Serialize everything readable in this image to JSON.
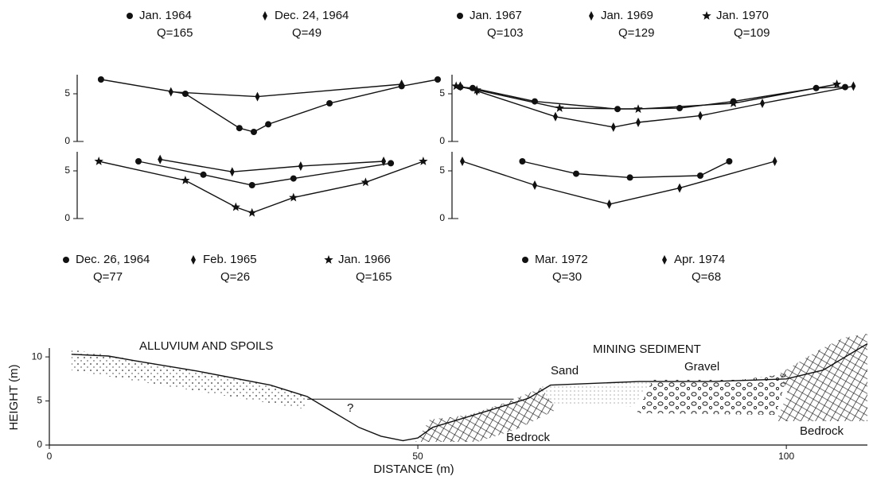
{
  "chart_data": [
    {
      "type": "profile",
      "legend": "top",
      "xlim": [
        0,
        100
      ],
      "ylim": [
        0,
        7
      ],
      "yticks": [
        0,
        5
      ],
      "series": [
        {
          "name": "Jan. 1964",
          "q": "Q=165",
          "marker": "circle",
          "x": [
            6.6,
            30,
            45,
            49,
            53,
            70,
            90,
            100
          ],
          "values": [
            6.5,
            5,
            1.4,
            1.0,
            1.8,
            4,
            5.8,
            6.5
          ]
        },
        {
          "name": "Dec. 24, 1964",
          "q": "Q=49",
          "marker": "diamond",
          "x": [
            26,
            50,
            90
          ],
          "values": [
            5.2,
            4.7,
            6.0
          ]
        }
      ]
    },
    {
      "type": "profile",
      "legend": "top",
      "xlim": [
        0,
        100
      ],
      "ylim": [
        0,
        7
      ],
      "yticks": [
        0,
        5
      ],
      "series": [
        {
          "name": "Jan. 1967",
          "q": "Q=103",
          "marker": "circle",
          "x": [
            2,
            5,
            20,
            40,
            55,
            68,
            88,
            95
          ],
          "values": [
            5.7,
            5.6,
            4.2,
            3.4,
            3.5,
            4.2,
            5.6,
            5.7
          ]
        },
        {
          "name": "Jan. 1969",
          "q": "Q=129",
          "marker": "diamond",
          "x": [
            2,
            6,
            25,
            39,
            45,
            60,
            75,
            97
          ],
          "values": [
            5.8,
            5.3,
            2.6,
            1.5,
            2.0,
            2.7,
            4,
            5.8
          ]
        },
        {
          "name": "Jan. 1970",
          "q": "Q=109",
          "marker": "star",
          "x": [
            1,
            6,
            26,
            45,
            68,
            93
          ],
          "values": [
            5.8,
            5.4,
            3.5,
            3.4,
            4.0,
            6.0
          ]
        }
      ]
    },
    {
      "type": "profile",
      "legend": "bottom",
      "xlim": [
        0,
        100
      ],
      "ylim": [
        0,
        7
      ],
      "yticks": [
        0,
        5
      ],
      "series": [
        {
          "name": "Dec. 26, 1964",
          "q": "Q=77",
          "marker": "circle",
          "x": [
            17,
            35,
            48.5,
            60,
            87
          ],
          "values": [
            6.0,
            4.6,
            3.5,
            4.2,
            5.8
          ]
        },
        {
          "name": "Feb. 1965",
          "q": "Q=26",
          "marker": "diamond",
          "x": [
            23,
            43,
            62,
            85
          ],
          "values": [
            6.2,
            4.9,
            5.5,
            6.0
          ]
        },
        {
          "name": "Jan. 1966",
          "q": "Q=165",
          "marker": "star",
          "x": [
            6,
            30,
            44,
            48.5,
            60,
            80,
            96
          ],
          "values": [
            6.0,
            4.0,
            1.2,
            0.6,
            2.2,
            3.8,
            6.0
          ]
        }
      ]
    },
    {
      "type": "profile",
      "legend": "bottom",
      "xlim": [
        0,
        100
      ],
      "ylim": [
        0,
        7
      ],
      "yticks": [
        0,
        5
      ],
      "series": [
        {
          "name": "Mar. 1972",
          "q": "Q=30",
          "marker": "circle",
          "x": [
            17,
            30,
            43,
            60,
            67
          ],
          "values": [
            6.0,
            4.7,
            4.3,
            4.5,
            6.0
          ]
        },
        {
          "name": "Apr. 1974",
          "q": "Q=68",
          "marker": "diamond",
          "x": [
            2.5,
            20,
            38,
            55,
            78
          ],
          "values": [
            6.0,
            3.5,
            1.5,
            3.2,
            6.0
          ]
        }
      ]
    },
    {
      "type": "section",
      "x_label": "DISTANCE (m)",
      "y_label": "HEIGHT (m)",
      "xlim": [
        0,
        111
      ],
      "ylim": [
        0,
        11
      ],
      "xticks": [
        0,
        50,
        100
      ],
      "yticks": [
        0,
        5,
        10
      ],
      "annotations": [
        "ALLUVIUM AND SPOILS",
        "MINING SEDIMENT",
        "Sand",
        "Gravel",
        "Bedrock",
        "Bedrock",
        "?"
      ],
      "series": [
        {
          "x": [
            3,
            8,
            12,
            20,
            30,
            35,
            38,
            40,
            42,
            45,
            48,
            50,
            52,
            60,
            65,
            68,
            80,
            90,
            100,
            105,
            110,
            111
          ],
          "values": [
            10.3,
            10.1,
            9.5,
            8.4,
            6.8,
            5.5,
            4,
            3,
            2,
            1,
            0.5,
            0.8,
            2,
            4,
            5.3,
            6.8,
            7.2,
            7.2,
            7.5,
            8.5,
            11,
            11.5
          ]
        },
        {
          "x": [
            35,
            63
          ],
          "values": [
            5.2,
            5.2
          ]
        }
      ]
    }
  ]
}
